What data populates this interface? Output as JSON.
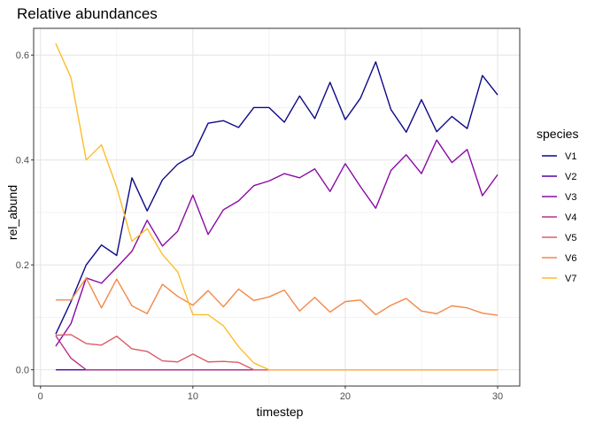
{
  "chart_data": {
    "type": "line",
    "title": "Relative abundances",
    "xlabel": "timestep",
    "ylabel": "rel_abund",
    "xlim": [
      -0.45,
      31.45
    ],
    "ylim": [
      -0.031,
      0.651
    ],
    "x_ticks": [
      0,
      10,
      20,
      30
    ],
    "x_tick_labels": [
      "0",
      "10",
      "20",
      "30"
    ],
    "y_ticks": [
      0.0,
      0.2,
      0.4,
      0.6
    ],
    "y_tick_labels": [
      "0.0",
      "0.2",
      "0.4",
      "0.6"
    ],
    "grid": true,
    "legend": {
      "title": "species",
      "position": "right"
    },
    "x": [
      1,
      2,
      3,
      4,
      5,
      6,
      7,
      8,
      9,
      10,
      11,
      12,
      13,
      14,
      15,
      16,
      17,
      18,
      19,
      20,
      21,
      22,
      23,
      24,
      25,
      26,
      27,
      28,
      29,
      30
    ],
    "series": [
      {
        "name": "V1",
        "color": "#0d0887",
        "values": [
          0.068,
          0.13,
          0.2,
          0.238,
          0.218,
          0.366,
          0.303,
          0.362,
          0.392,
          0.409,
          0.47,
          0.475,
          0.462,
          0.5,
          0.5,
          0.472,
          0.522,
          0.479,
          0.548,
          0.477,
          0.518,
          0.587,
          0.496,
          0.453,
          0.515,
          0.454,
          0.483,
          0.46,
          0.561,
          0.524
        ]
      },
      {
        "name": "V2",
        "color": "#5402a3",
        "values": [
          0.0,
          0.0,
          0.0,
          0.0,
          0.0,
          0.0,
          0.0,
          0.0,
          0.0,
          0.0,
          0.0,
          0.0,
          0.0,
          0.0,
          0.0,
          0.0,
          0.0,
          0.0,
          0.0,
          0.0,
          0.0,
          0.0,
          0.0,
          0.0,
          0.0,
          0.0,
          0.0,
          0.0,
          0.0,
          0.0
        ]
      },
      {
        "name": "V3",
        "color": "#8b0aa5",
        "values": [
          0.045,
          0.088,
          0.175,
          0.165,
          0.195,
          0.226,
          0.285,
          0.236,
          0.264,
          0.333,
          0.258,
          0.305,
          0.322,
          0.351,
          0.36,
          0.374,
          0.366,
          0.383,
          0.34,
          0.393,
          0.349,
          0.308,
          0.38,
          0.41,
          0.374,
          0.438,
          0.395,
          0.42,
          0.332,
          0.372
        ]
      },
      {
        "name": "V4",
        "color": "#b93289",
        "values": [
          0.065,
          0.022,
          0.0,
          0.0,
          0.0,
          0.0,
          0.0,
          0.0,
          0.0,
          0.0,
          0.0,
          0.0,
          0.0,
          0.0,
          0.0,
          0.0,
          0.0,
          0.0,
          0.0,
          0.0,
          0.0,
          0.0,
          0.0,
          0.0,
          0.0,
          0.0,
          0.0,
          0.0,
          0.0,
          0.0
        ]
      },
      {
        "name": "V5",
        "color": "#db5c68",
        "values": [
          0.066,
          0.067,
          0.05,
          0.047,
          0.064,
          0.04,
          0.035,
          0.017,
          0.015,
          0.03,
          0.015,
          0.016,
          0.014,
          0.0,
          0.0,
          0.0,
          0.0,
          0.0,
          0.0,
          0.0,
          0.0,
          0.0,
          0.0,
          0.0,
          0.0,
          0.0,
          0.0,
          0.0,
          0.0,
          0.0
        ]
      },
      {
        "name": "V6",
        "color": "#f48849",
        "values": [
          0.133,
          0.133,
          0.175,
          0.118,
          0.173,
          0.122,
          0.107,
          0.163,
          0.14,
          0.123,
          0.151,
          0.12,
          0.154,
          0.132,
          0.139,
          0.152,
          0.112,
          0.138,
          0.11,
          0.13,
          0.133,
          0.105,
          0.123,
          0.136,
          0.112,
          0.107,
          0.122,
          0.118,
          0.108,
          0.104
        ]
      },
      {
        "name": "V7",
        "color": "#febc2a",
        "values": [
          0.622,
          0.557,
          0.4,
          0.429,
          0.348,
          0.245,
          0.269,
          0.22,
          0.187,
          0.105,
          0.105,
          0.084,
          0.044,
          0.013,
          0.0,
          0.0,
          0.0,
          0.0,
          0.0,
          0.0,
          0.0,
          0.0,
          0.0,
          0.0,
          0.0,
          0.0,
          0.0,
          0.0,
          0.0,
          0.0
        ]
      }
    ]
  }
}
